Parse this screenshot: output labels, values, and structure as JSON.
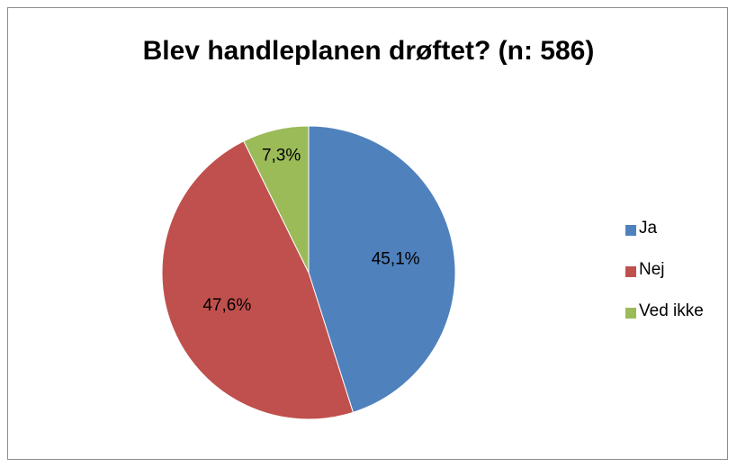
{
  "chart_data": {
    "type": "pie",
    "title": "Blev handleplanen drøftet? (n: 586)",
    "categories": [
      "Ja",
      "Nej",
      "Ved ikke"
    ],
    "values": [
      45.1,
      47.6,
      7.3
    ],
    "labels": [
      "45,1%",
      "47,6%",
      "7,3%"
    ],
    "colors": [
      "#4f81bd",
      "#c0504d",
      "#9bbb59"
    ],
    "legend_position": "right"
  }
}
